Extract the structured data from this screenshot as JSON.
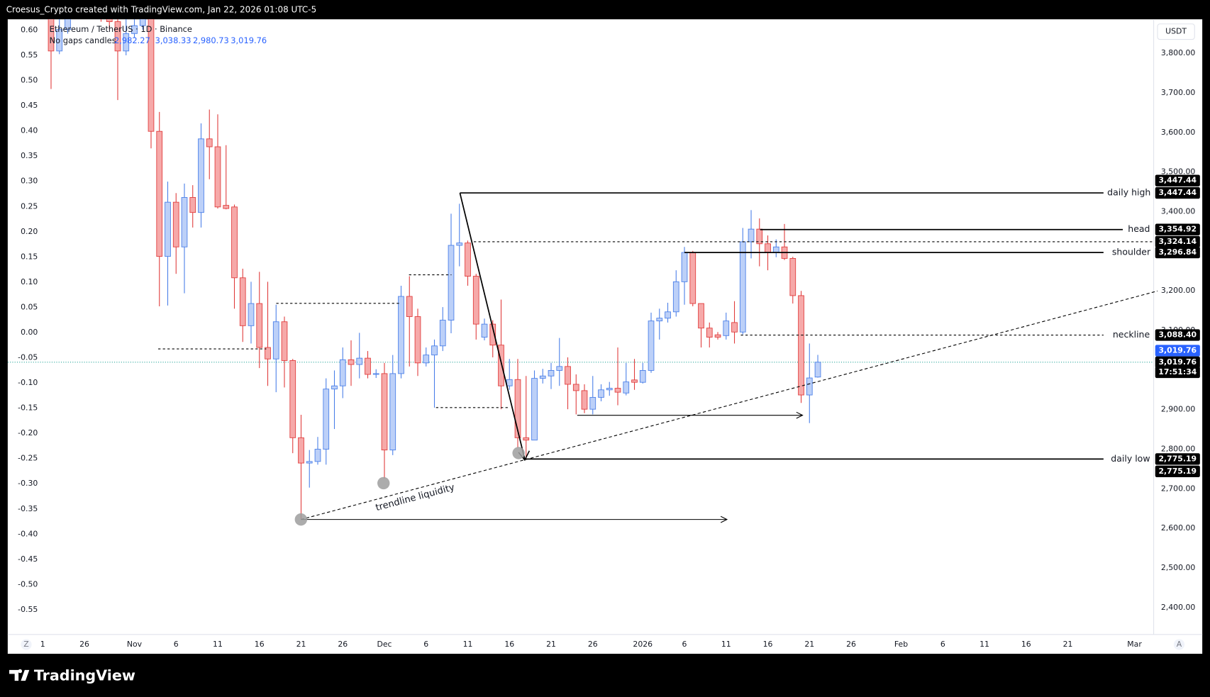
{
  "header": {
    "attribution": "Croesus_Crypto created with TradingView.com, Jan 22, 2026 01:08 UTC-5"
  },
  "footer": {
    "brand": "TradingView"
  },
  "chart_data": {
    "type": "candlestick",
    "title": "Ethereum / TetherUS · 1D · Binance",
    "subtitle": "No gaps candles",
    "ohlc_legend": [
      {
        "value": 2982.27,
        "label": "2,982.27"
      },
      {
        "value": 3038.33,
        "label": "3,038.33"
      },
      {
        "value": 2980.73,
        "label": "2,980.73"
      },
      {
        "value": 3019.76,
        "label": "3,019.76"
      }
    ],
    "currency": "USDT",
    "axis_buttons": [
      "Z",
      "A"
    ],
    "open": [
      3950,
      3806,
      3860,
      3905,
      3930,
      3990,
      3960,
      3920,
      3880,
      3806,
      3850,
      3870,
      3890,
      3603,
      3287,
      3424,
      3311,
      3436,
      3398,
      3584,
      3564,
      3416,
      3412,
      3233,
      3112,
      3168,
      3057,
      3028,
      3122,
      3024,
      2829,
      2765,
      2769,
      2800,
      2952,
      2960,
      3026,
      3014,
      3030,
      2989,
      2991,
      2798,
      2991,
      3186,
      3135,
      3018,
      3038,
      3061,
      3126,
      3315,
      3321,
      3237,
      3083,
      3116,
      3063,
      2960,
      2976,
      2829,
      2823,
      2979,
      2985,
      2999,
      3009,
      2964,
      2948,
      2901,
      2931,
      2950,
      2954,
      2942,
      2975,
      2969,
      2999,
      3124,
      3131,
      3147,
      3223,
      3297,
      3168,
      3106,
      3089,
      3087,
      3120,
      3096,
      3324,
      3356,
      3319,
      3297,
      3311,
      3282,
      3188,
      2937,
      2982.27
    ],
    "high": [
      4020,
      3930,
      3960,
      3980,
      4050,
      4060,
      4000,
      3970,
      3920,
      3890,
      3900,
      3950,
      3930,
      3652,
      3476,
      3447,
      3471,
      3467,
      3623,
      3658,
      3646,
      3568,
      3418,
      3256,
      3223,
      3248,
      3223,
      3165,
      3135,
      3028,
      2887,
      2798,
      2831,
      2979,
      2999,
      3057,
      3075,
      3094,
      3048,
      3002,
      3018,
      3038,
      3213,
      3237,
      3155,
      3057,
      3077,
      3159,
      3395,
      3420,
      3327,
      3243,
      3130,
      3126,
      3178,
      3028,
      3028,
      2985,
      2999,
      3003,
      3018,
      3081,
      3032,
      2989,
      2964,
      2985,
      2964,
      2970,
      3057,
      3018,
      3028,
      3018,
      3145,
      3155,
      3170,
      3252,
      3311,
      3301,
      3168,
      3120,
      3096,
      3145,
      3174,
      3359,
      3404,
      3383,
      3340,
      3330,
      3369,
      3286,
      3200,
      3067,
      3038.33
    ],
    "low": [
      3710,
      3798,
      3850,
      3890,
      3910,
      3930,
      3880,
      3860,
      3682,
      3795,
      3840,
      3860,
      3560,
      3161,
      3163,
      3243,
      3194,
      3360,
      3360,
      3482,
      3408,
      3406,
      3155,
      3071,
      3067,
      3005,
      2960,
      2944,
      2956,
      2790,
      2623,
      2703,
      2761,
      2761,
      2851,
      2929,
      2960,
      2979,
      2979,
      2980,
      2726,
      2785,
      2979,
      3009,
      2985,
      3009,
      2905,
      3048,
      3093,
      3262,
      3213,
      3077,
      3075,
      3032,
      2901,
      2950,
      2804,
      2775.19,
      2823,
      2966,
      2952,
      2960,
      2901,
      2888,
      2891,
      2888,
      2921,
      2935,
      2911,
      2936,
      2950,
      2966,
      2993,
      3077,
      3120,
      3135,
      3165,
      3161,
      3057,
      3057,
      3077,
      3077,
      3067,
      3090,
      3282,
      3262,
      3252,
      3285,
      3278,
      3168,
      2917,
      2866,
      2980.73
    ],
    "close": [
      3806,
      3860,
      3905,
      3930,
      3990,
      3960,
      3920,
      3880,
      3806,
      3850,
      3870,
      3890,
      3603,
      3287,
      3424,
      3311,
      3436,
      3398,
      3584,
      3564,
      3412,
      3408,
      3233,
      3112,
      3168,
      3057,
      3028,
      3122,
      3024,
      2829,
      2765,
      2769,
      2800,
      2952,
      2960,
      3026,
      3014,
      3030,
      2989,
      2991,
      2798,
      2991,
      3186,
      3135,
      3018,
      3038,
      3061,
      3126,
      3315,
      3321,
      3237,
      3116,
      3116,
      3063,
      2960,
      2976,
      2829,
      2823,
      2979,
      2985,
      2999,
      3009,
      2964,
      2948,
      2901,
      2931,
      2950,
      2954,
      2944,
      2970,
      2969,
      2999,
      3124,
      3131,
      3147,
      3223,
      3297,
      3168,
      3106,
      3083,
      3083,
      3124,
      3096,
      3324,
      3356,
      3319,
      3297,
      3311,
      3282,
      3188,
      2937,
      2980,
      3019.76
    ],
    "colors": {
      "up_fill": "#bcd0f8",
      "up_line": "#4a7fe8",
      "down_fill": "#f6a9a9",
      "down_line": "#e03c3c",
      "last_price_line": "#26a69a",
      "last_price_box": "#2962ff",
      "level_box": "#000000",
      "level_line": "#000000"
    },
    "grid": false,
    "xlim": [
      -5.2,
      132.3
    ],
    "xticks": [
      {
        "value": -1,
        "label": "1"
      },
      {
        "value": 4,
        "label": "26"
      },
      {
        "value": 10,
        "label": "Nov"
      },
      {
        "value": 15,
        "label": "6"
      },
      {
        "value": 20,
        "label": "11"
      },
      {
        "value": 25,
        "label": "16"
      },
      {
        "value": 30,
        "label": "21"
      },
      {
        "value": 35,
        "label": "26"
      },
      {
        "value": 40,
        "label": "Dec"
      },
      {
        "value": 45,
        "label": "6"
      },
      {
        "value": 50,
        "label": "11"
      },
      {
        "value": 55,
        "label": "16"
      },
      {
        "value": 60,
        "label": "21"
      },
      {
        "value": 65,
        "label": "26"
      },
      {
        "value": 71,
        "label": "2026"
      },
      {
        "value": 76,
        "label": "6"
      },
      {
        "value": 81,
        "label": "11"
      },
      {
        "value": 86,
        "label": "16"
      },
      {
        "value": 91,
        "label": "21"
      },
      {
        "value": 96,
        "label": "26"
      },
      {
        "value": 102,
        "label": "Feb"
      },
      {
        "value": 107,
        "label": "6"
      },
      {
        "value": 112,
        "label": "11"
      },
      {
        "value": 117,
        "label": "16"
      },
      {
        "value": 122,
        "label": "21"
      },
      {
        "value": 130,
        "label": "Mar"
      }
    ],
    "ylim": [
      2332,
      3886
    ],
    "yticks": [
      {
        "value": 2400,
        "label": "2,400.00"
      },
      {
        "value": 2500,
        "label": "2,500.00"
      },
      {
        "value": 2600,
        "label": "2,600.00"
      },
      {
        "value": 2700,
        "label": "2,700.00"
      },
      {
        "value": 2800,
        "label": "2,800.00"
      },
      {
        "value": 2900,
        "label": "2,900.00"
      },
      {
        "value": 3000,
        "label": "3,000.00"
      },
      {
        "value": 3100,
        "label": "3,100.00"
      },
      {
        "value": 3200,
        "label": "3,200.00"
      },
      {
        "value": 3300,
        "label": "3,300.00"
      },
      {
        "value": 3400,
        "label": "3,400.00"
      },
      {
        "value": 3500,
        "label": "3,500.00"
      },
      {
        "value": 3600,
        "label": "3,600.00"
      },
      {
        "value": 3700,
        "label": "3,700.00"
      },
      {
        "value": 3800,
        "label": "3,800.00"
      }
    ],
    "y2lim": [
      -0.599,
      0.6214
    ],
    "y2ticks": [
      {
        "value": 0.6,
        "label": "0.60"
      },
      {
        "value": 0.55,
        "label": "0.55"
      },
      {
        "value": 0.5,
        "label": "0.50"
      },
      {
        "value": 0.45,
        "label": "0.45"
      },
      {
        "value": 0.4,
        "label": "0.40"
      },
      {
        "value": 0.35,
        "label": "0.35"
      },
      {
        "value": 0.3,
        "label": "0.30"
      },
      {
        "value": 0.25,
        "label": "0.25"
      },
      {
        "value": 0.2,
        "label": "0.20"
      },
      {
        "value": 0.15,
        "label": "0.15"
      },
      {
        "value": 0.1,
        "label": "0.10"
      },
      {
        "value": 0.05,
        "label": "0.05"
      },
      {
        "value": 0,
        "label": "0.00"
      },
      {
        "value": -0.05,
        "label": "-0.05"
      },
      {
        "value": -0.1,
        "label": "-0.10"
      },
      {
        "value": -0.15,
        "label": "-0.15"
      },
      {
        "value": -0.2,
        "label": "-0.20"
      },
      {
        "value": -0.25,
        "label": "-0.25"
      },
      {
        "value": -0.3,
        "label": "-0.30"
      },
      {
        "value": -0.35,
        "label": "-0.35"
      },
      {
        "value": -0.4,
        "label": "-0.40"
      },
      {
        "value": -0.45,
        "label": "-0.45"
      },
      {
        "value": -0.5,
        "label": "-0.50"
      },
      {
        "value": -0.55,
        "label": "-0.55"
      }
    ],
    "levels": [
      {
        "name": "daily high",
        "value": 3447.44,
        "label": "3,447.44"
      },
      {
        "name": "head",
        "value": 3354.92,
        "label": "3,354.92"
      },
      {
        "value": 3324.14,
        "label": "3,324.14"
      },
      {
        "name": "shoulder",
        "value": 3296.84,
        "label": "3,296.84"
      },
      {
        "name": "neckline",
        "value": 3088.4,
        "label": "3,088.40"
      },
      {
        "name": "daily low",
        "value": 2775.19,
        "label": "2,775.19"
      }
    ],
    "last_price": {
      "value": 3019.76,
      "label": "3,019.76",
      "countdown": "17:51:34"
    },
    "annotation": "trendline liquidity"
  }
}
